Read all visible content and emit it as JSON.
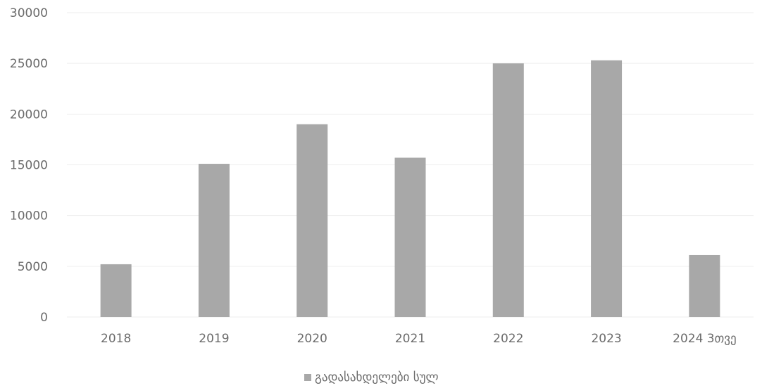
{
  "chart_data": {
    "type": "bar",
    "categories": [
      "2018",
      "2019",
      "2020",
      "2021",
      "2022",
      "2023",
      "2024 3თვე"
    ],
    "series": [
      {
        "name": "გადასახდელები სულ",
        "values": [
          5200,
          15100,
          19000,
          15700,
          25000,
          25300,
          6100
        ]
      }
    ],
    "ylim": [
      0,
      30000
    ],
    "yticks": [
      0,
      5000,
      10000,
      15000,
      20000,
      25000,
      30000
    ],
    "grid": true,
    "legend_position": "bottom",
    "colors": {
      "bar": "#a8a8a8",
      "grid": "#eeeeee",
      "text": "#6b6b6b"
    }
  }
}
